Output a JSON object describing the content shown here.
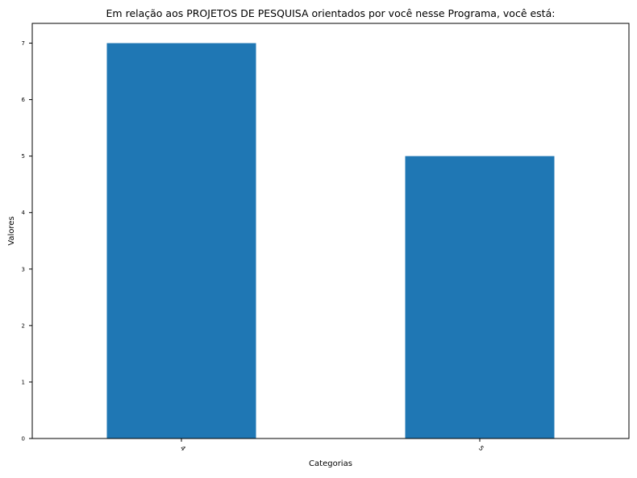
{
  "chart_data": {
    "type": "bar",
    "title": "Em relação aos PROJETOS DE PESQUISA orientados por você nesse Programa, você está:",
    "xlabel": "Categorias",
    "ylabel": "Valores",
    "categories": [
      "4",
      "5"
    ],
    "values": [
      7,
      5
    ],
    "ylim": [
      0,
      7.35
    ],
    "yticks": [
      "0",
      "1",
      "2",
      "3",
      "4",
      "5",
      "6",
      "7"
    ],
    "grid": false,
    "legend": "none",
    "bar_color": "#1f77b4"
  }
}
